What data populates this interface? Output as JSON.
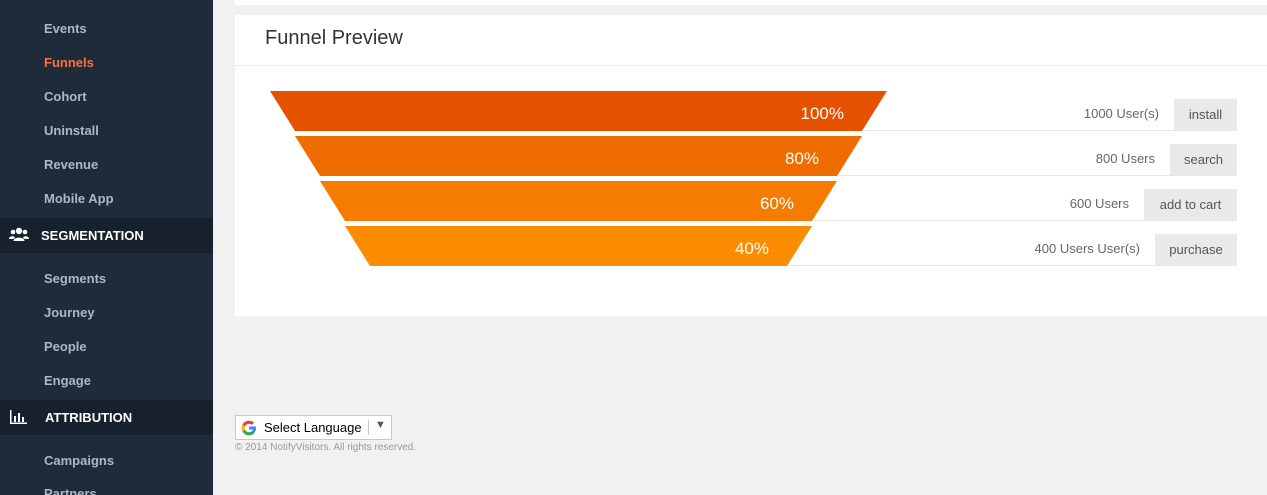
{
  "sidebar": {
    "items": [
      {
        "label": "Events",
        "active": false
      },
      {
        "label": "Funnels",
        "active": true
      },
      {
        "label": "Cohort",
        "active": false
      },
      {
        "label": "Uninstall",
        "active": false
      },
      {
        "label": "Revenue",
        "active": false
      },
      {
        "label": "Mobile App",
        "active": false
      }
    ],
    "segmentation": {
      "title": "SEGMENTATION",
      "icon": "users-icon",
      "items": [
        {
          "label": "Segments"
        },
        {
          "label": "Journey"
        },
        {
          "label": "People"
        },
        {
          "label": "Engage"
        }
      ]
    },
    "attribution": {
      "title": "ATTRIBUTION",
      "icon": "bar-chart-icon",
      "items": [
        {
          "label": "Campaigns"
        },
        {
          "label": "Partners"
        }
      ]
    },
    "active_color": "#f5733f"
  },
  "panel": {
    "title": "Funnel Preview"
  },
  "funnel": {
    "steps": [
      {
        "percent_label": "100%",
        "percent": 100,
        "users": "1000 User(s)",
        "step": "install",
        "color": "#e65100"
      },
      {
        "percent_label": "80%",
        "percent": 80,
        "users": "800 Users",
        "step": "search",
        "color": "#ef6c00"
      },
      {
        "percent_label": "60%",
        "percent": 60,
        "users": "600 Users",
        "step": "add to cart",
        "color": "#f57c00"
      },
      {
        "percent_label": "40%",
        "percent": 40,
        "users": "400 Users User(s)",
        "step": "purchase",
        "color": "#fb8c00"
      }
    ]
  },
  "footer": {
    "language_select": "Select Language",
    "copyright": "© 2014 NotifyVisitors. All rights reserved."
  }
}
